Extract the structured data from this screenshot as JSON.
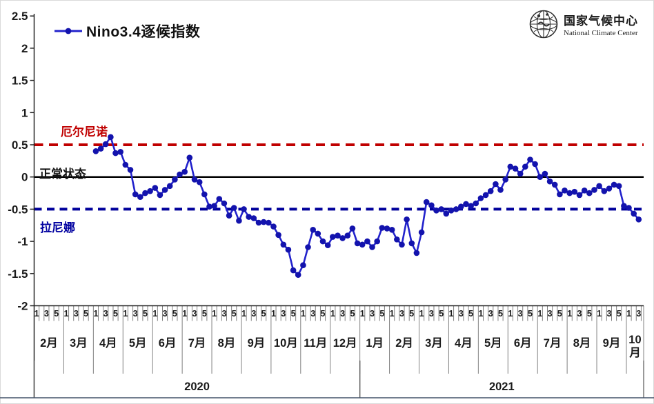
{
  "page": {
    "background": "#ffffff",
    "border_color": "#d9d9d9",
    "bottom_rule_color": "#44546a"
  },
  "legend": {
    "label": "Nino3.4逐候指数",
    "marker": "line-with-dot",
    "color": "#2222cc"
  },
  "logo": {
    "icon": "globe-icon",
    "title_cn": "国家气候中心",
    "title_en": "National Climate Center"
  },
  "annotations": {
    "el_nino": {
      "text": "厄尔尼诺",
      "color": "#c00000"
    },
    "normal": {
      "text": "正常状态",
      "color": "#111111"
    },
    "la_nina": {
      "text": "拉尼娜",
      "color": "#0000a0"
    }
  },
  "chart_data": {
    "type": "line",
    "title": "Nino3.4逐候指数",
    "series_name": "Nino3.4逐候指数",
    "line_color": "#2222cc",
    "marker_color": "#1313ad",
    "grid": false,
    "ylim": [
      -2,
      2.5
    ],
    "yticks": [
      "2.5",
      "2",
      "1.5",
      "1",
      "0.5",
      "0",
      "-0.5",
      "-1",
      "-1.5",
      "-2"
    ],
    "reference_lines": [
      {
        "value": 0.5,
        "style": "dashed",
        "color": "#c00000",
        "label": "厄尔尼诺"
      },
      {
        "value": 0,
        "style": "solid",
        "color": "#000000",
        "label": "正常状态"
      },
      {
        "value": -0.5,
        "style": "dashed",
        "color": "#00009b",
        "label": "拉尼娜"
      }
    ],
    "x_unit": "pentad (候), 6 per month",
    "x_axis": {
      "pentad_tick_labels": [
        "1",
        "3",
        "5"
      ],
      "years": [
        {
          "label": "2020",
          "months": [
            "2月",
            "3月",
            "4月",
            "5月",
            "6月",
            "7月",
            "8月",
            "9月",
            "10月",
            "11月",
            "12月"
          ]
        },
        {
          "label": "2021",
          "months": [
            "1月",
            "2月",
            "3月",
            "4月",
            "5月",
            "6月",
            "7月",
            "8月",
            "9月",
            "10月"
          ]
        }
      ],
      "last_month_pentads": 3.5
    },
    "start": {
      "year": 2020,
      "month_label": "4月",
      "pentad": 1
    },
    "values": [
      0.4,
      0.44,
      0.51,
      0.62,
      0.37,
      0.39,
      0.19,
      0.11,
      -0.27,
      -0.31,
      -0.25,
      -0.22,
      -0.17,
      -0.28,
      -0.2,
      -0.14,
      -0.04,
      0.04,
      0.08,
      0.3,
      -0.04,
      -0.08,
      -0.27,
      -0.46,
      -0.45,
      -0.34,
      -0.41,
      -0.6,
      -0.48,
      -0.68,
      -0.5,
      -0.62,
      -0.64,
      -0.71,
      -0.7,
      -0.71,
      -0.77,
      -0.9,
      -1.05,
      -1.13,
      -1.45,
      -1.52,
      -1.37,
      -1.09,
      -0.82,
      -0.88,
      -1.0,
      -1.06,
      -0.93,
      -0.91,
      -0.95,
      -0.91,
      -0.8,
      -1.03,
      -1.05,
      -1.0,
      -1.09,
      -1.0,
      -0.79,
      -0.8,
      -0.82,
      -0.97,
      -1.05,
      -0.66,
      -1.03,
      -1.18,
      -0.86,
      -0.39,
      -0.44,
      -0.52,
      -0.5,
      -0.57,
      -0.52,
      -0.5,
      -0.46,
      -0.42,
      -0.45,
      -0.41,
      -0.33,
      -0.28,
      -0.22,
      -0.11,
      -0.2,
      -0.04,
      0.16,
      0.13,
      0.05,
      0.16,
      0.27,
      0.2,
      0.0,
      0.05,
      -0.07,
      -0.12,
      -0.27,
      -0.21,
      -0.25,
      -0.23,
      -0.28,
      -0.21,
      -0.25,
      -0.2,
      -0.14,
      -0.22,
      -0.18,
      -0.12,
      -0.14,
      -0.45,
      -0.48,
      -0.57,
      -0.66
    ]
  }
}
